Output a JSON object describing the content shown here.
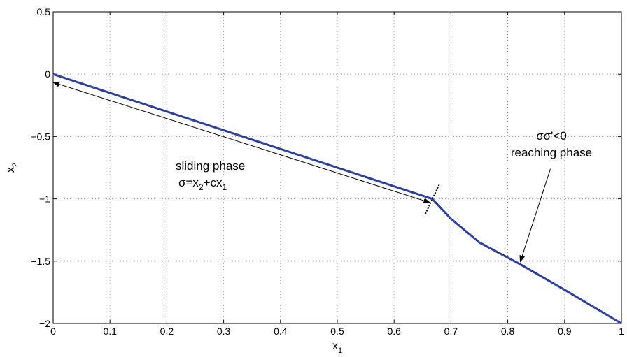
{
  "chart_data": {
    "type": "line",
    "xlim": [
      0,
      1
    ],
    "ylim": [
      -2,
      0.5
    ],
    "x_ticks": [
      0,
      0.1,
      0.2,
      0.3,
      0.4,
      0.5,
      0.6,
      0.7,
      0.8,
      0.9,
      1
    ],
    "x_tick_labels": [
      "0",
      "0.1",
      "0.2",
      "0.3",
      "0.4",
      "0.5",
      "0.6",
      "0.7",
      "0.8",
      "0.9",
      "1"
    ],
    "y_ticks": [
      0.5,
      0,
      -0.5,
      -1,
      -1.5,
      -2
    ],
    "y_tick_labels": [
      "0.5",
      "0",
      "−0.5",
      "−1",
      "−1.5",
      "−2"
    ],
    "xlabel": {
      "base": "x",
      "sub": "1"
    },
    "ylabel": {
      "base": "x",
      "sub": "2"
    },
    "grid": true,
    "series": [
      {
        "color": "#2b3fa8",
        "x": [
          0,
          0.667,
          0.7,
          0.75,
          0.82,
          0.9,
          1.0
        ],
        "y": [
          0,
          -1.0,
          -1.16,
          -1.35,
          -1.52,
          -1.73,
          -2.0
        ]
      }
    ],
    "switching_marker": {
      "x1": 0.655,
      "y1": -1.12,
      "x2": 0.68,
      "y2": -0.88
    },
    "annotations": {
      "sliding": {
        "line1": "sliding phase",
        "line2": {
          "t1": "σ=x",
          "s1": "2",
          "t2": "+cx",
          "s2": "1"
        },
        "arrow": {
          "from": [
            0.663,
            -1.03
          ],
          "to": [
            0.0,
            -0.065
          ],
          "double": true
        }
      },
      "reaching": {
        "line1": "σσ'<0",
        "line2": "reaching phase",
        "arrow": {
          "from": [
            0.875,
            -0.76
          ],
          "to": [
            0.822,
            -1.505
          ]
        }
      }
    }
  }
}
